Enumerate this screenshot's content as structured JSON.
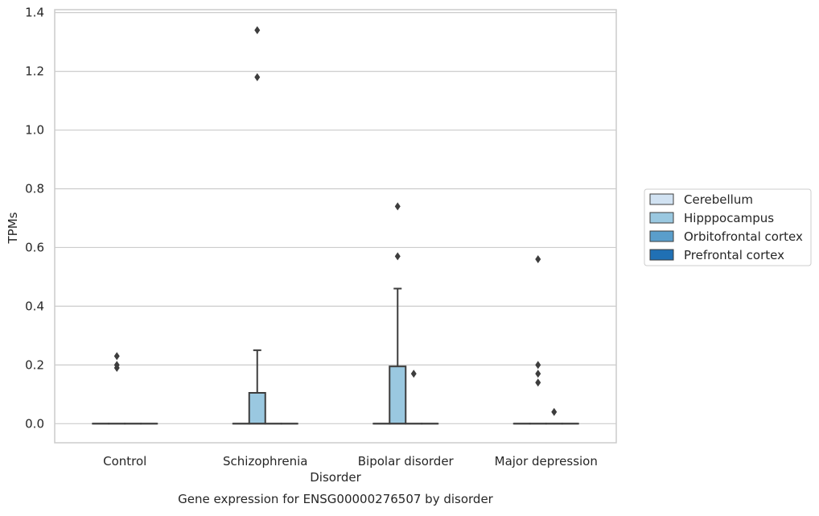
{
  "chart_data": {
    "type": "box",
    "title": "Gene expression for ENSG00000276507 by disorder",
    "xlabel": "Disorder",
    "ylabel": "TPMs",
    "ylim": [
      -0.065,
      1.41
    ],
    "yticks": [
      "0.0",
      "0.2",
      "0.4",
      "0.6",
      "0.8",
      "1.0",
      "1.2",
      "1.4"
    ],
    "ytick_values": [
      0,
      0.2,
      0.4,
      0.6,
      0.8,
      1.0,
      1.2,
      1.4
    ],
    "grid": "horizontal",
    "legend_position": "right",
    "categories": [
      "Control",
      "Schizophrenia",
      "Bipolar disorder",
      "Major depression"
    ],
    "series": [
      {
        "name": "Cerebellum",
        "color": "#d1e2f2",
        "boxes": [
          {
            "q1": 0,
            "median": 0,
            "q3": 0,
            "whisker_low": 0,
            "whisker_high": 0,
            "outliers": []
          },
          {
            "q1": 0,
            "median": 0,
            "q3": 0,
            "whisker_low": 0,
            "whisker_high": 0,
            "outliers": []
          },
          {
            "q1": 0,
            "median": 0,
            "q3": 0,
            "whisker_low": 0,
            "whisker_high": 0,
            "outliers": []
          },
          {
            "q1": 0,
            "median": 0,
            "q3": 0,
            "whisker_low": 0,
            "whisker_high": 0,
            "outliers": []
          }
        ]
      },
      {
        "name": "Hipppocampus",
        "color": "#9ac8e0",
        "boxes": [
          {
            "q1": 0,
            "median": 0,
            "q3": 0,
            "whisker_low": 0,
            "whisker_high": 0,
            "outliers": [
              0.19,
              0.2,
              0.23
            ]
          },
          {
            "q1": 0,
            "median": 0,
            "q3": 0.105,
            "whisker_low": 0,
            "whisker_high": 0.25,
            "outliers": [
              1.18,
              1.34
            ]
          },
          {
            "q1": 0,
            "median": 0,
            "q3": 0.195,
            "whisker_low": 0,
            "whisker_high": 0.46,
            "outliers": [
              0.57,
              0.74
            ]
          },
          {
            "q1": 0,
            "median": 0,
            "q3": 0,
            "whisker_low": 0,
            "whisker_high": 0,
            "outliers": [
              0.2,
              0.56
            ]
          }
        ]
      },
      {
        "name": "Orbitofrontal cortex",
        "color": "#5a9ecb",
        "boxes": [
          {
            "q1": 0,
            "median": 0,
            "q3": 0,
            "whisker_low": 0,
            "whisker_high": 0,
            "outliers": []
          },
          {
            "q1": 0,
            "median": 0,
            "q3": 0,
            "whisker_low": 0,
            "whisker_high": 0,
            "outliers": []
          },
          {
            "q1": 0,
            "median": 0,
            "q3": 0,
            "whisker_low": 0,
            "whisker_high": 0,
            "outliers": [
              0.17
            ]
          },
          {
            "q1": 0,
            "median": 0,
            "q3": 0,
            "whisker_low": 0,
            "whisker_high": 0,
            "outliers": [
              0.04
            ]
          }
        ]
      },
      {
        "name": "Prefrontal cortex",
        "color": "#2070b4",
        "boxes": [
          {
            "q1": 0,
            "median": 0,
            "q3": 0,
            "whisker_low": 0,
            "whisker_high": 0,
            "outliers": []
          },
          {
            "q1": 0,
            "median": 0,
            "q3": 0,
            "whisker_low": 0,
            "whisker_high": 0,
            "outliers": []
          },
          {
            "q1": 0,
            "median": 0,
            "q3": 0,
            "whisker_low": 0,
            "whisker_high": 0,
            "outliers": []
          },
          {
            "q1": 0,
            "median": 0,
            "q3": 0,
            "whisker_low": 0,
            "whisker_high": 0,
            "outliers": []
          }
        ]
      }
    ],
    "extra_outliers": [
      {
        "category_index": 3,
        "series_index": 0,
        "values": [
          0.14,
          0.17
        ]
      }
    ]
  }
}
